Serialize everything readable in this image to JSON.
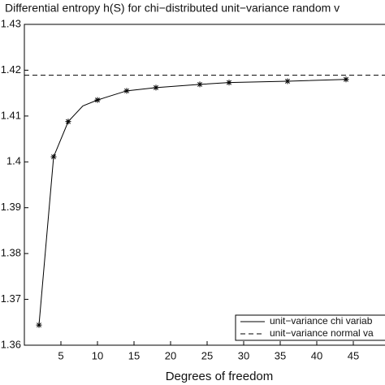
{
  "chart_data": {
    "type": "line",
    "title": "Differential entropy h(S) for chi−distributed unit−variance random v",
    "x_label": "Degrees of freedom",
    "xlim": [
      0,
      50
    ],
    "ylim": [
      1.36,
      1.43
    ],
    "xticks": [
      5,
      10,
      15,
      20,
      25,
      30,
      35,
      40,
      45
    ],
    "yticks": [
      {
        "value": 1.36,
        "label": "1.36"
      },
      {
        "value": 1.37,
        "label": "1.37"
      },
      {
        "value": 1.38,
        "label": "1.38"
      },
      {
        "value": 1.39,
        "label": "1.39"
      },
      {
        "value": 1.4,
        "label": "1.4"
      },
      {
        "value": 1.41,
        "label": "1.41"
      },
      {
        "value": 1.42,
        "label": "1.42"
      },
      {
        "value": 1.43,
        "label": "1.43"
      }
    ],
    "legend": "lower right",
    "series": [
      {
        "name": "unit−variance chi variab",
        "color": "#000000",
        "style": "solid",
        "marker": "*",
        "x": [
          2,
          4,
          6,
          8,
          10,
          14,
          18,
          24,
          28,
          36,
          44
        ],
        "values": [
          1.3644,
          1.4011,
          1.4088,
          1.4122,
          1.4135,
          1.4155,
          1.4162,
          1.4169,
          1.4173,
          1.4176,
          1.418
        ]
      },
      {
        "name": "unit−variance normal va",
        "color": "#000000",
        "style": "dashed",
        "x": [
          0,
          50
        ],
        "values": [
          1.4189,
          1.4189
        ]
      }
    ]
  }
}
